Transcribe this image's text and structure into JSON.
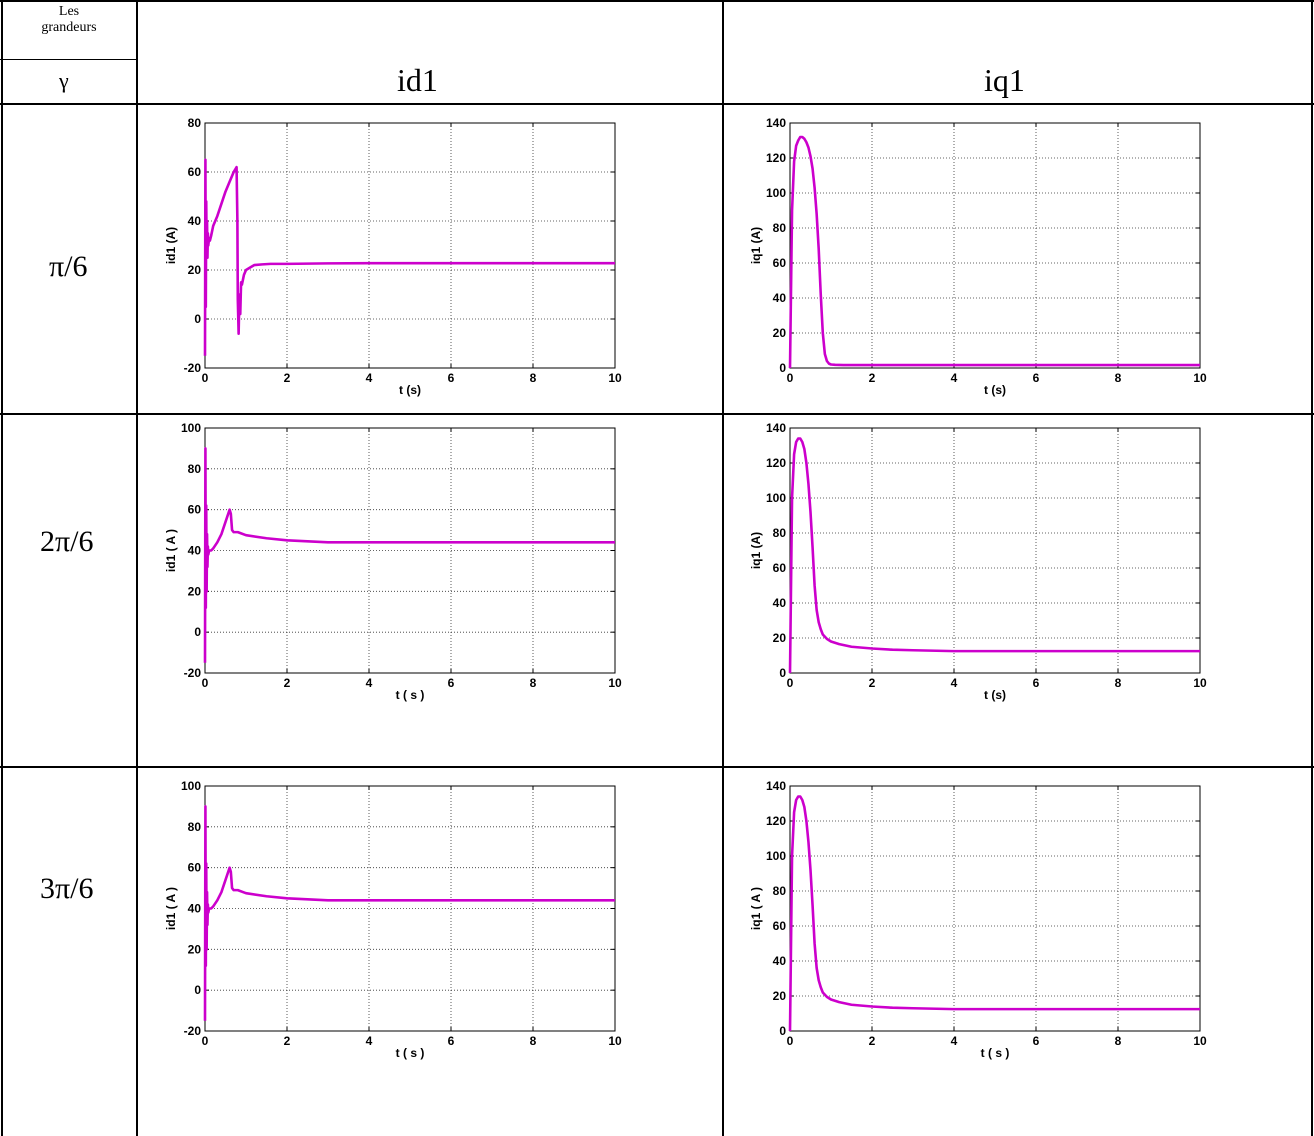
{
  "table": {
    "header_top": "Les\ngrandeurs",
    "header_gamma": "γ",
    "col_headers": [
      "id1",
      "iq1"
    ],
    "row_labels": [
      "π/6",
      "2π/6",
      "3π/6"
    ]
  },
  "colors": {
    "curve": "#cc00cc",
    "grid": "#333333"
  },
  "chart_data": [
    {
      "type": "line",
      "xlabel": "t (s)",
      "ylabel": "id1 (A)",
      "xlim": [
        0,
        10
      ],
      "ylim": [
        -20,
        80
      ],
      "xticks": [
        "0",
        "2",
        "4",
        "6",
        "8",
        "10"
      ],
      "yticks": [
        "-20",
        "0",
        "20",
        "40",
        "60",
        "80"
      ],
      "grid": true,
      "x": [
        0,
        0.01,
        0.02,
        0.03,
        0.04,
        0.05,
        0.06,
        0.07,
        0.08,
        0.1,
        0.12,
        0.15,
        0.2,
        0.3,
        0.4,
        0.5,
        0.6,
        0.7,
        0.77,
        0.79,
        0.8,
        0.82,
        0.84,
        0.86,
        0.88,
        0.9,
        0.95,
        1.0,
        1.1,
        1.2,
        1.4,
        1.6,
        2,
        3,
        4,
        6,
        8,
        10
      ],
      "y": [
        -15,
        65,
        5,
        48,
        28,
        40,
        25,
        35,
        30,
        33,
        32,
        34,
        38,
        42,
        47,
        52,
        56,
        60,
        62,
        40,
        8,
        -6,
        10,
        2,
        15,
        14,
        18,
        20,
        21,
        22,
        22.3,
        22.5,
        22.5,
        22.7,
        22.8,
        22.8,
        22.8,
        22.8
      ]
    },
    {
      "type": "line",
      "xlabel": "t (s)",
      "ylabel": "iq1 (A)",
      "xlim": [
        0,
        10
      ],
      "ylim": [
        0,
        140
      ],
      "xticks": [
        "0",
        "2",
        "4",
        "6",
        "8",
        "10"
      ],
      "yticks": [
        "0",
        "20",
        "40",
        "60",
        "80",
        "100",
        "120",
        "140"
      ],
      "grid": true,
      "x": [
        0,
        0.05,
        0.1,
        0.15,
        0.2,
        0.25,
        0.3,
        0.35,
        0.4,
        0.45,
        0.5,
        0.55,
        0.6,
        0.65,
        0.7,
        0.75,
        0.8,
        0.85,
        0.9,
        0.95,
        1.0,
        1.1,
        1.3,
        2,
        4,
        6,
        8,
        10
      ],
      "y": [
        0,
        90,
        118,
        127,
        130,
        132,
        132,
        131,
        129,
        126,
        121,
        114,
        103,
        88,
        68,
        42,
        20,
        8,
        4,
        2.5,
        2,
        1.8,
        1.7,
        1.7,
        1.7,
        1.7,
        1.7,
        1.7
      ]
    },
    {
      "type": "line",
      "xlabel": "t ( s )",
      "ylabel": "id1 ( A )",
      "xlim": [
        0,
        10
      ],
      "ylim": [
        -20,
        100
      ],
      "xticks": [
        "0",
        "2",
        "4",
        "6",
        "8",
        "10"
      ],
      "yticks": [
        "-20",
        "0",
        "20",
        "40",
        "60",
        "80",
        "100"
      ],
      "grid": true,
      "x": [
        0,
        0.01,
        0.02,
        0.03,
        0.04,
        0.05,
        0.06,
        0.07,
        0.08,
        0.1,
        0.15,
        0.2,
        0.3,
        0.4,
        0.5,
        0.6,
        0.63,
        0.66,
        0.7,
        0.8,
        1.0,
        1.5,
        2,
        2.5,
        3,
        4,
        6,
        8,
        10
      ],
      "y": [
        -15,
        90,
        12,
        62,
        20,
        48,
        32,
        42,
        38,
        40,
        40,
        41,
        44,
        48,
        54,
        60,
        58,
        50,
        49,
        49,
        47.5,
        46,
        45,
        44.5,
        44,
        44,
        44,
        44,
        44
      ]
    },
    {
      "type": "line",
      "xlabel": "t (s)",
      "ylabel": "iq1 (A)",
      "xlim": [
        0,
        10
      ],
      "ylim": [
        0,
        140
      ],
      "xticks": [
        "0",
        "2",
        "4",
        "6",
        "8",
        "10"
      ],
      "yticks": [
        "0",
        "20",
        "40",
        "60",
        "80",
        "100",
        "120",
        "140"
      ],
      "grid": true,
      "x": [
        0,
        0.05,
        0.1,
        0.15,
        0.2,
        0.25,
        0.3,
        0.35,
        0.4,
        0.45,
        0.5,
        0.55,
        0.6,
        0.65,
        0.7,
        0.75,
        0.8,
        0.9,
        1.0,
        1.2,
        1.5,
        2,
        2.5,
        3,
        4,
        6,
        8,
        10
      ],
      "y": [
        0,
        100,
        125,
        132,
        134,
        134,
        132,
        128,
        120,
        108,
        92,
        72,
        50,
        36,
        29,
        25,
        22,
        19.5,
        18,
        16.5,
        15,
        14,
        13.3,
        13,
        12.5,
        12.5,
        12.5,
        12.5
      ]
    },
    {
      "type": "line",
      "xlabel": "t ( s )",
      "ylabel": "id1 ( A )",
      "xlim": [
        0,
        10
      ],
      "ylim": [
        -20,
        100
      ],
      "xticks": [
        "0",
        "2",
        "4",
        "6",
        "8",
        "10"
      ],
      "yticks": [
        "-20",
        "0",
        "20",
        "40",
        "60",
        "80",
        "100"
      ],
      "grid": true,
      "x": [
        0,
        0.01,
        0.02,
        0.03,
        0.04,
        0.05,
        0.06,
        0.07,
        0.08,
        0.1,
        0.15,
        0.2,
        0.3,
        0.4,
        0.5,
        0.6,
        0.63,
        0.66,
        0.7,
        0.8,
        1.0,
        1.5,
        2,
        2.5,
        3,
        4,
        6,
        8,
        10
      ],
      "y": [
        -15,
        90,
        12,
        62,
        20,
        48,
        32,
        42,
        38,
        40,
        40,
        41,
        44,
        48,
        54,
        60,
        58,
        50,
        49,
        49,
        47.5,
        46,
        45,
        44.5,
        44,
        44,
        44,
        44,
        44
      ]
    },
    {
      "type": "line",
      "xlabel": "t ( s )",
      "ylabel": "iq1 ( A )",
      "xlim": [
        0,
        10
      ],
      "ylim": [
        0,
        140
      ],
      "xticks": [
        "0",
        "2",
        "4",
        "6",
        "8",
        "10"
      ],
      "yticks": [
        "0",
        "20",
        "40",
        "60",
        "80",
        "100",
        "120",
        "140"
      ],
      "grid": true,
      "x": [
        0,
        0.05,
        0.1,
        0.15,
        0.2,
        0.25,
        0.3,
        0.35,
        0.4,
        0.45,
        0.5,
        0.55,
        0.6,
        0.65,
        0.7,
        0.75,
        0.8,
        0.9,
        1.0,
        1.2,
        1.5,
        2,
        2.5,
        3,
        4,
        6,
        8,
        10
      ],
      "y": [
        0,
        100,
        125,
        132,
        134,
        134,
        132,
        128,
        120,
        108,
        92,
        72,
        50,
        36,
        29,
        25,
        22,
        19.5,
        18,
        16.5,
        15,
        14,
        13.3,
        13,
        12.5,
        12.5,
        12.5,
        12.5
      ]
    }
  ]
}
